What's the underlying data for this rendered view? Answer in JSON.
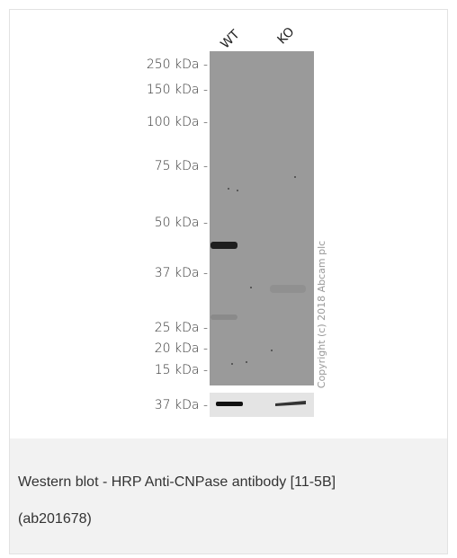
{
  "figure": {
    "lanes": [
      "WT",
      "KO"
    ],
    "markers": [
      "250 kDa -",
      "150 kDa -",
      "100 kDa -",
      "75 kDa -",
      "50 kDa -",
      "37 kDa -",
      "25 kDa -",
      "20 kDa -",
      "15 kDa -"
    ],
    "loading_marker": "37 kDa -",
    "copyright": "Copyright (c) 2018 Abcam plc"
  },
  "caption": {
    "lines": [
      "Western blot - HRP Anti-CNPase antibody [11-5B]",
      "(ab201678)"
    ]
  }
}
